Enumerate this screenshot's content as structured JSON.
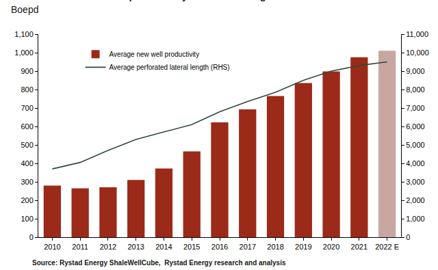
{
  "chart_data": {
    "type": "bar",
    "title": "Permian basin new well productivity and lateral lengths",
    "subtitle": "Boepd",
    "source": "Source: Rystad Energy ShaleWellCube,  Rystad Energy research and analysis",
    "categories": [
      "2010",
      "2011",
      "2012",
      "2013",
      "2014",
      "2015",
      "2016",
      "2017",
      "2018",
      "2019",
      "2020",
      "2021",
      "2022 E"
    ],
    "series": [
      {
        "name": "Average new well productivity",
        "type": "bar",
        "colors": [
          "#9c2a18",
          "#9c2a18",
          "#9c2a18",
          "#9c2a18",
          "#9c2a18",
          "#9c2a18",
          "#9c2a18",
          "#9c2a18",
          "#9c2a18",
          "#9c2a18",
          "#9c2a18",
          "#9c2a18",
          "#c9a7a1"
        ],
        "values": [
          280,
          265,
          270,
          310,
          372,
          465,
          622,
          693,
          765,
          835,
          898,
          975,
          1010
        ]
      },
      {
        "name": "Average perforated lateral length (RHS)",
        "type": "line",
        "axis": "y2",
        "color": "#2e4a3c",
        "values": [
          3700,
          4050,
          4700,
          5300,
          5700,
          6100,
          6800,
          7350,
          7850,
          8500,
          9000,
          9300,
          9500
        ]
      }
    ],
    "ylim": [
      0,
      1100
    ],
    "yticks": [
      0,
      100,
      200,
      300,
      400,
      500,
      600,
      700,
      800,
      900,
      {
        "value": 1000,
        "label": "1,000"
      },
      {
        "value": 1100,
        "label": "1,100"
      }
    ],
    "y2lim": [
      0,
      11000
    ],
    "y2ticks": [
      0,
      {
        "value": 1000,
        "label": "1,000"
      },
      {
        "value": 2000,
        "label": "2,000"
      },
      {
        "value": 3000,
        "label": "3,000"
      },
      {
        "value": 4000,
        "label": "4,000"
      },
      {
        "value": 5000,
        "label": "5,000"
      },
      {
        "value": 6000,
        "label": "6,000"
      },
      {
        "value": 7000,
        "label": "7,000"
      },
      {
        "value": 8000,
        "label": "8,000"
      },
      {
        "value": 9000,
        "label": "9,000"
      },
      {
        "value": 10000,
        "label": "10,000"
      },
      {
        "value": 11000,
        "label": "11,000"
      }
    ],
    "grid": false,
    "legend": "upper left"
  }
}
